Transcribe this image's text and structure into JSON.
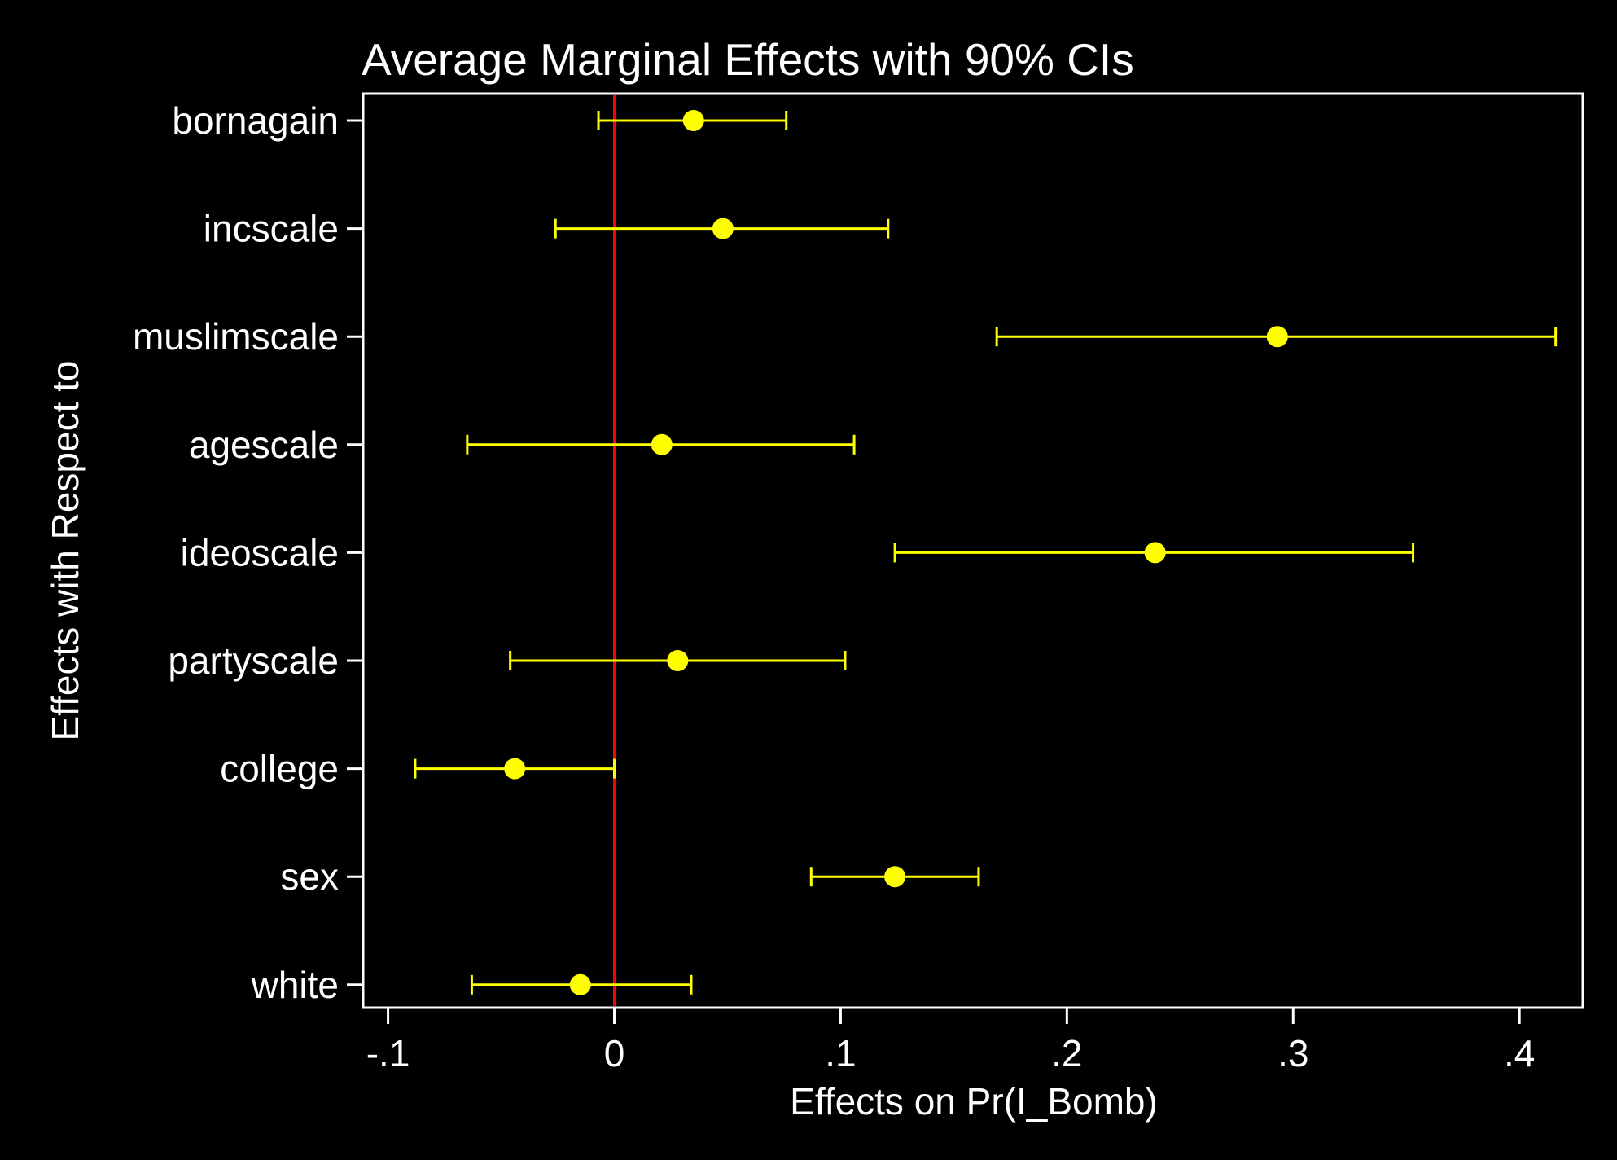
{
  "chart_data": {
    "type": "dot-whisker",
    "title": "Average Marginal Effects with 90% CIs",
    "xlabel": "Effects on Pr(I_Bomb)",
    "ylabel": "Effects with Respect to",
    "xlim": [
      -0.111,
      0.428
    ],
    "x_ticks": [
      -0.1,
      0,
      0.1,
      0.2,
      0.3,
      0.4
    ],
    "x_tick_labels": [
      "-.1",
      "0",
      ".1",
      ".2",
      ".3",
      ".4"
    ],
    "reference_line": {
      "x": 0,
      "color": "#ff0000"
    },
    "colors": {
      "background": "#000000",
      "axis": "#ffffff",
      "marker": "#ffff00",
      "ci": "#ffff00",
      "reference": "#ff0000"
    },
    "grid": false,
    "categories": [
      "bornagain",
      "incscale",
      "muslimscale",
      "agescale",
      "ideoscale",
      "partyscale",
      "college",
      "sex",
      "white"
    ],
    "estimates": [
      0.035,
      0.048,
      0.293,
      0.021,
      0.239,
      0.028,
      -0.044,
      0.124,
      -0.015
    ],
    "ci_low": [
      -0.007,
      -0.026,
      0.169,
      -0.065,
      0.124,
      -0.046,
      -0.088,
      0.087,
      -0.063
    ],
    "ci_high": [
      0.076,
      0.121,
      0.416,
      0.106,
      0.353,
      0.102,
      0.0,
      0.161,
      0.034
    ]
  }
}
